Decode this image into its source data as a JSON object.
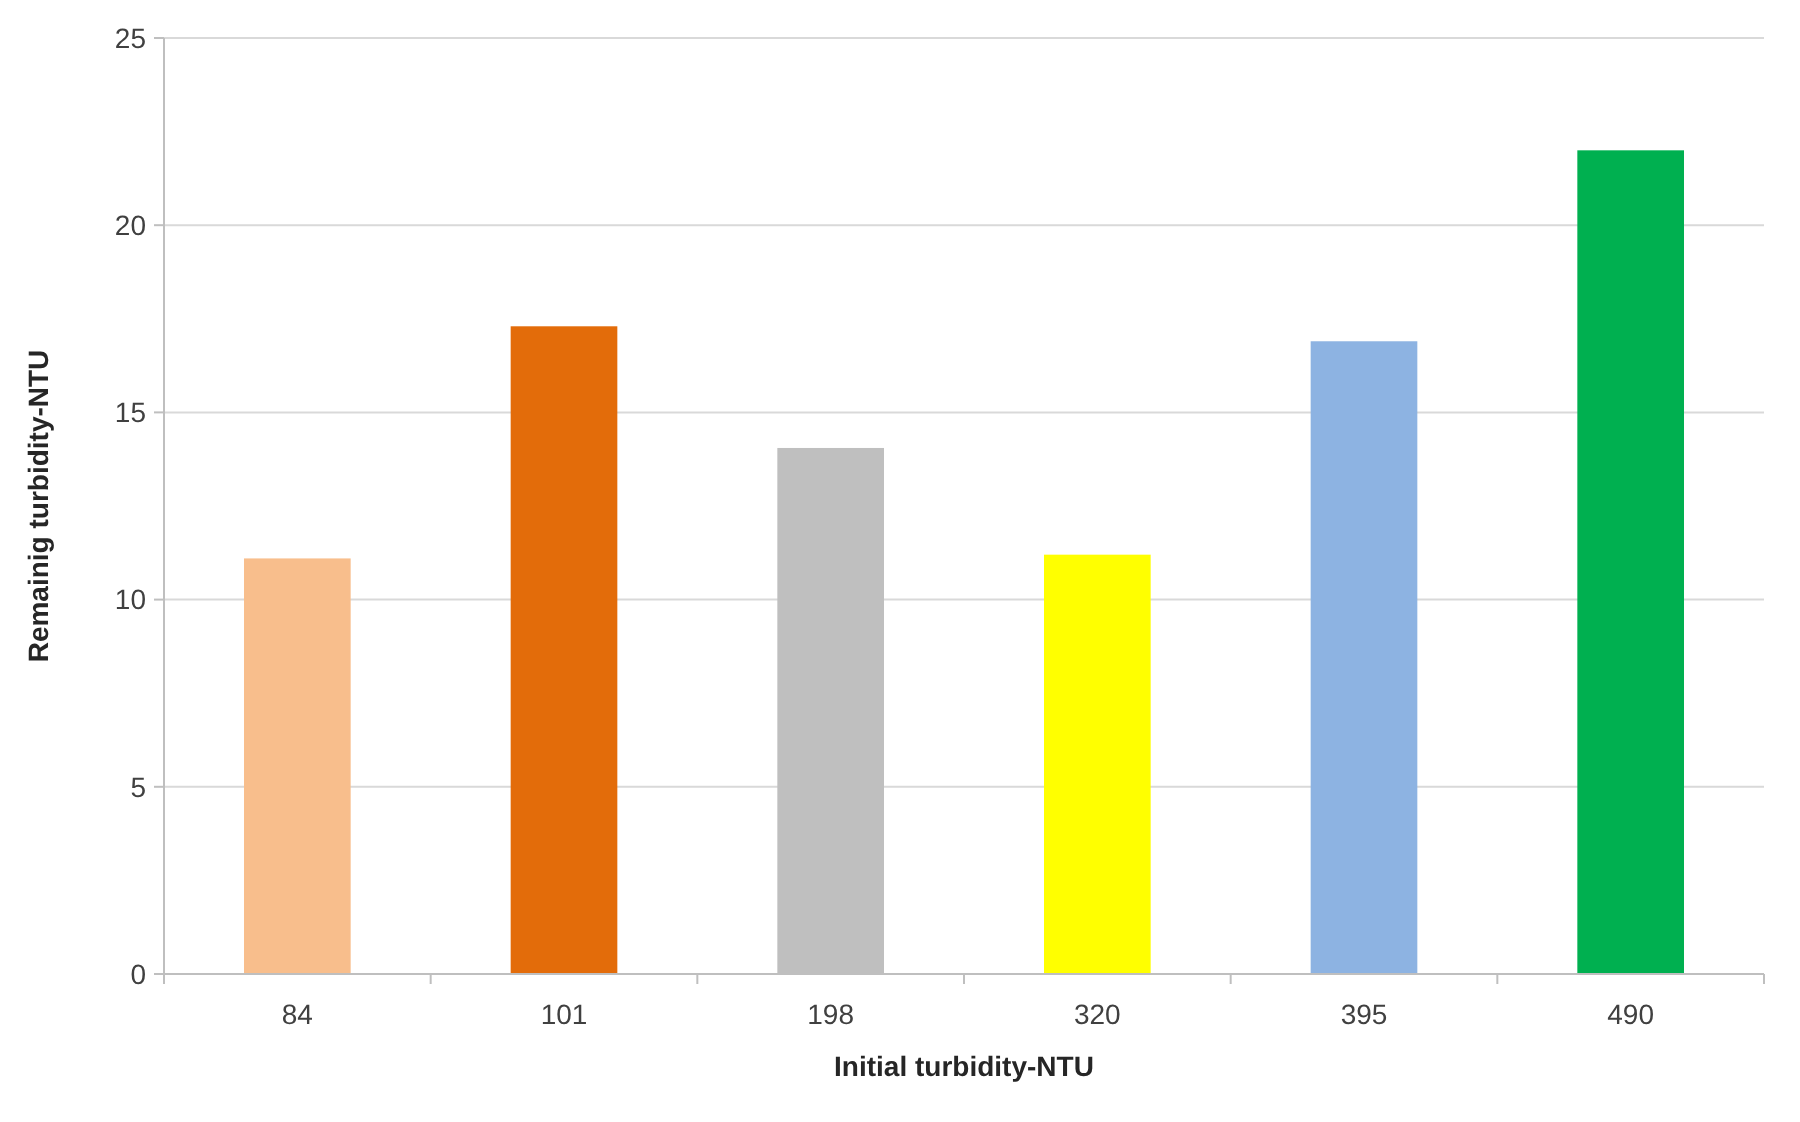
{
  "chart_data": {
    "type": "bar",
    "xlabel": "Initial turbidity-NTU",
    "ylabel": "Remainig turbidity-NTU",
    "categories": [
      "84",
      "101",
      "198",
      "320",
      "395",
      "490"
    ],
    "values": [
      11.1,
      17.3,
      14.05,
      11.2,
      16.9,
      22.0
    ],
    "colors": [
      "#f8be8c",
      "#e36c0a",
      "#bfbfbf",
      "#ffff00",
      "#8db3e2",
      "#00b050"
    ],
    "ylim": [
      0,
      25
    ],
    "yticks": [
      0,
      5,
      10,
      15,
      20,
      25
    ],
    "grid": "y"
  }
}
